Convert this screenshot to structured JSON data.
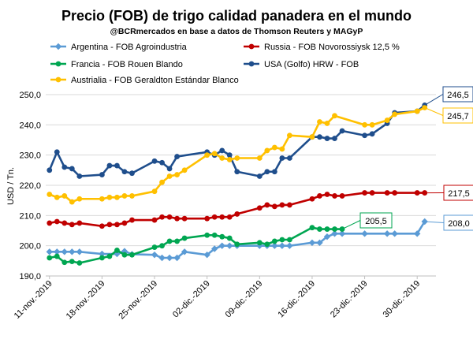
{
  "chart_data": {
    "type": "line",
    "title": "Precio (FOB) de trigo calidad panadera en el mundo",
    "subtitle": "@BCRmercados en base a datos de Thomson Reuters y MAGyP",
    "ylabel": "USD / Tn.",
    "xlabel": "",
    "ylim": [
      190,
      250
    ],
    "yticks": [
      190,
      200,
      210,
      220,
      230,
      240,
      250
    ],
    "ytick_labels": [
      "190,0",
      "200,0",
      "210,0",
      "220,0",
      "230,0",
      "240,0",
      "250,0"
    ],
    "xtick_labels": [
      "11-nov.-2019",
      "18-nov.-2019",
      "25-nov.-2019",
      "02-dic.-2019",
      "09-dic.-2019",
      "16-dic.-2019",
      "23-dic.-2019",
      "30-dic.-2019"
    ],
    "grid": "horizontal",
    "legend_position": "top",
    "series": [
      {
        "name": "Argentina - FOB Agroindustria",
        "color": "#5b9bd5",
        "marker": "diamond",
        "callout": "208,0",
        "points": [
          [
            "2019-11-11",
            198
          ],
          [
            "2019-11-12",
            198
          ],
          [
            "2019-11-13",
            198
          ],
          [
            "2019-11-14",
            198
          ],
          [
            "2019-11-15",
            198
          ],
          [
            "2019-11-18",
            197.3
          ],
          [
            "2019-11-20",
            197.3
          ],
          [
            "2019-11-21",
            198.2
          ],
          [
            "2019-11-22",
            197.2
          ],
          [
            "2019-11-25",
            197
          ],
          [
            "2019-11-26",
            196
          ],
          [
            "2019-11-27",
            196
          ],
          [
            "2019-11-28",
            196
          ],
          [
            "2019-11-29",
            198
          ],
          [
            "2019-12-02",
            197
          ],
          [
            "2019-12-03",
            199
          ],
          [
            "2019-12-04",
            200
          ],
          [
            "2019-12-05",
            200
          ],
          [
            "2019-12-06",
            200
          ],
          [
            "2019-12-09",
            200
          ],
          [
            "2019-12-10",
            200
          ],
          [
            "2019-12-11",
            200
          ],
          [
            "2019-12-12",
            200
          ],
          [
            "2019-12-13",
            200
          ],
          [
            "2019-12-16",
            201
          ],
          [
            "2019-12-17",
            201
          ],
          [
            "2019-12-18",
            203
          ],
          [
            "2019-12-19",
            204
          ],
          [
            "2019-12-20",
            204
          ],
          [
            "2019-12-23",
            204
          ],
          [
            "2019-12-26",
            204
          ],
          [
            "2019-12-27",
            204
          ],
          [
            "2019-12-30",
            204
          ],
          [
            "2019-12-31",
            208
          ]
        ]
      },
      {
        "name": "Russia - FOB Novorossiysk 12,5 %",
        "color": "#c00000",
        "marker": "circle",
        "callout": "217,5",
        "points": [
          [
            "2019-11-11",
            207.5
          ],
          [
            "2019-11-12",
            208
          ],
          [
            "2019-11-13",
            207.5
          ],
          [
            "2019-11-14",
            207
          ],
          [
            "2019-11-15",
            207.5
          ],
          [
            "2019-11-18",
            206.5
          ],
          [
            "2019-11-19",
            207
          ],
          [
            "2019-11-20",
            207
          ],
          [
            "2019-11-21",
            207.5
          ],
          [
            "2019-11-22",
            208.5
          ],
          [
            "2019-11-25",
            208.5
          ],
          [
            "2019-11-26",
            209.5
          ],
          [
            "2019-11-27",
            209.5
          ],
          [
            "2019-11-28",
            209
          ],
          [
            "2019-11-29",
            209
          ],
          [
            "2019-12-02",
            209
          ],
          [
            "2019-12-03",
            209.5
          ],
          [
            "2019-12-04",
            209.5
          ],
          [
            "2019-12-05",
            209.5
          ],
          [
            "2019-12-06",
            210.5
          ],
          [
            "2019-12-09",
            212.5
          ],
          [
            "2019-12-10",
            213.5
          ],
          [
            "2019-12-11",
            213
          ],
          [
            "2019-12-12",
            213.5
          ],
          [
            "2019-12-13",
            213.5
          ],
          [
            "2019-12-16",
            215.5
          ],
          [
            "2019-12-17",
            216.5
          ],
          [
            "2019-12-18",
            217
          ],
          [
            "2019-12-19",
            216.5
          ],
          [
            "2019-12-20",
            216.5
          ],
          [
            "2019-12-23",
            217.5
          ],
          [
            "2019-12-24",
            217.5
          ],
          [
            "2019-12-26",
            217.5
          ],
          [
            "2019-12-27",
            217.5
          ],
          [
            "2019-12-30",
            217.5
          ],
          [
            "2019-12-31",
            217.5
          ]
        ]
      },
      {
        "name": "Francia - FOB Rouen Blando",
        "color": "#00a651",
        "marker": "circle",
        "callout": "205,5",
        "points": [
          [
            "2019-11-11",
            196
          ],
          [
            "2019-11-12",
            196.5
          ],
          [
            "2019-11-13",
            194.5
          ],
          [
            "2019-11-14",
            194.8
          ],
          [
            "2019-11-15",
            194.3
          ],
          [
            "2019-11-18",
            196
          ],
          [
            "2019-11-19",
            196.5
          ],
          [
            "2019-11-20",
            198.5
          ],
          [
            "2019-11-21",
            197
          ],
          [
            "2019-11-22",
            197
          ],
          [
            "2019-11-25",
            199.5
          ],
          [
            "2019-11-26",
            200
          ],
          [
            "2019-11-27",
            201.5
          ],
          [
            "2019-11-28",
            201.5
          ],
          [
            "2019-11-29",
            202.5
          ],
          [
            "2019-12-02",
            203.5
          ],
          [
            "2019-12-03",
            203.5
          ],
          [
            "2019-12-04",
            203
          ],
          [
            "2019-12-05",
            202.5
          ],
          [
            "2019-12-06",
            200.5
          ],
          [
            "2019-12-09",
            201
          ],
          [
            "2019-12-10",
            200.5
          ],
          [
            "2019-12-11",
            201.5
          ],
          [
            "2019-12-12",
            202
          ],
          [
            "2019-12-13",
            202
          ],
          [
            "2019-12-16",
            206
          ],
          [
            "2019-12-17",
            205.5
          ],
          [
            "2019-12-18",
            205.5
          ],
          [
            "2019-12-19",
            205.5
          ],
          [
            "2019-12-20",
            205.5
          ]
        ]
      },
      {
        "name": "USA (Golfo) HRW - FOB",
        "color": "#1f4e8c",
        "marker": "circle",
        "callout": "246,5",
        "points": [
          [
            "2019-11-11",
            225
          ],
          [
            "2019-11-12",
            231
          ],
          [
            "2019-11-13",
            226
          ],
          [
            "2019-11-14",
            225.5
          ],
          [
            "2019-11-15",
            223
          ],
          [
            "2019-11-18",
            223.5
          ],
          [
            "2019-11-19",
            226.5
          ],
          [
            "2019-11-20",
            226.5
          ],
          [
            "2019-11-21",
            224.5
          ],
          [
            "2019-11-22",
            224
          ],
          [
            "2019-11-25",
            228
          ],
          [
            "2019-11-26",
            227.5
          ],
          [
            "2019-11-27",
            225.5
          ],
          [
            "2019-11-28",
            229.5
          ],
          [
            "2019-12-02",
            231
          ],
          [
            "2019-12-03",
            230
          ],
          [
            "2019-12-04",
            231.5
          ],
          [
            "2019-12-05",
            230
          ],
          [
            "2019-12-06",
            224.5
          ],
          [
            "2019-12-09",
            223
          ],
          [
            "2019-12-10",
            224.5
          ],
          [
            "2019-12-11",
            224.5
          ],
          [
            "2019-12-12",
            229
          ],
          [
            "2019-12-13",
            229
          ],
          [
            "2019-12-16",
            236
          ],
          [
            "2019-12-17",
            236
          ],
          [
            "2019-12-18",
            235.5
          ],
          [
            "2019-12-19",
            235.5
          ],
          [
            "2019-12-20",
            238
          ],
          [
            "2019-12-23",
            236.5
          ],
          [
            "2019-12-24",
            237
          ],
          [
            "2019-12-26",
            240.5
          ],
          [
            "2019-12-27",
            244
          ],
          [
            "2019-12-30",
            244.5
          ],
          [
            "2019-12-31",
            246.5
          ]
        ]
      },
      {
        "name": "Austrialia - FOB Geraldton Estándar Blanco",
        "color": "#ffc000",
        "marker": "circle",
        "callout": "245,7",
        "points": [
          [
            "2019-11-11",
            217
          ],
          [
            "2019-11-12",
            216
          ],
          [
            "2019-11-13",
            216.5
          ],
          [
            "2019-11-14",
            214.5
          ],
          [
            "2019-11-15",
            215.5
          ],
          [
            "2019-11-18",
            215.5
          ],
          [
            "2019-11-19",
            216
          ],
          [
            "2019-11-20",
            216
          ],
          [
            "2019-11-21",
            216.5
          ],
          [
            "2019-11-22",
            216.5
          ],
          [
            "2019-11-25",
            218
          ],
          [
            "2019-11-26",
            221
          ],
          [
            "2019-11-27",
            223
          ],
          [
            "2019-11-28",
            223.5
          ],
          [
            "2019-11-29",
            225
          ],
          [
            "2019-12-02",
            230
          ],
          [
            "2019-12-03",
            230.5
          ],
          [
            "2019-12-04",
            229
          ],
          [
            "2019-12-05",
            228.5
          ],
          [
            "2019-12-06",
            229
          ],
          [
            "2019-12-09",
            229
          ],
          [
            "2019-12-10",
            231.5
          ],
          [
            "2019-12-11",
            232.5
          ],
          [
            "2019-12-12",
            232
          ],
          [
            "2019-12-13",
            236.5
          ],
          [
            "2019-12-16",
            236
          ],
          [
            "2019-12-17",
            241
          ],
          [
            "2019-12-18",
            240.5
          ],
          [
            "2019-12-19",
            243
          ],
          [
            "2019-12-23",
            240
          ],
          [
            "2019-12-24",
            240
          ],
          [
            "2019-12-26",
            241.5
          ],
          [
            "2019-12-27",
            243.5
          ],
          [
            "2019-12-30",
            244.5
          ],
          [
            "2019-12-31",
            245.7
          ]
        ]
      }
    ]
  }
}
